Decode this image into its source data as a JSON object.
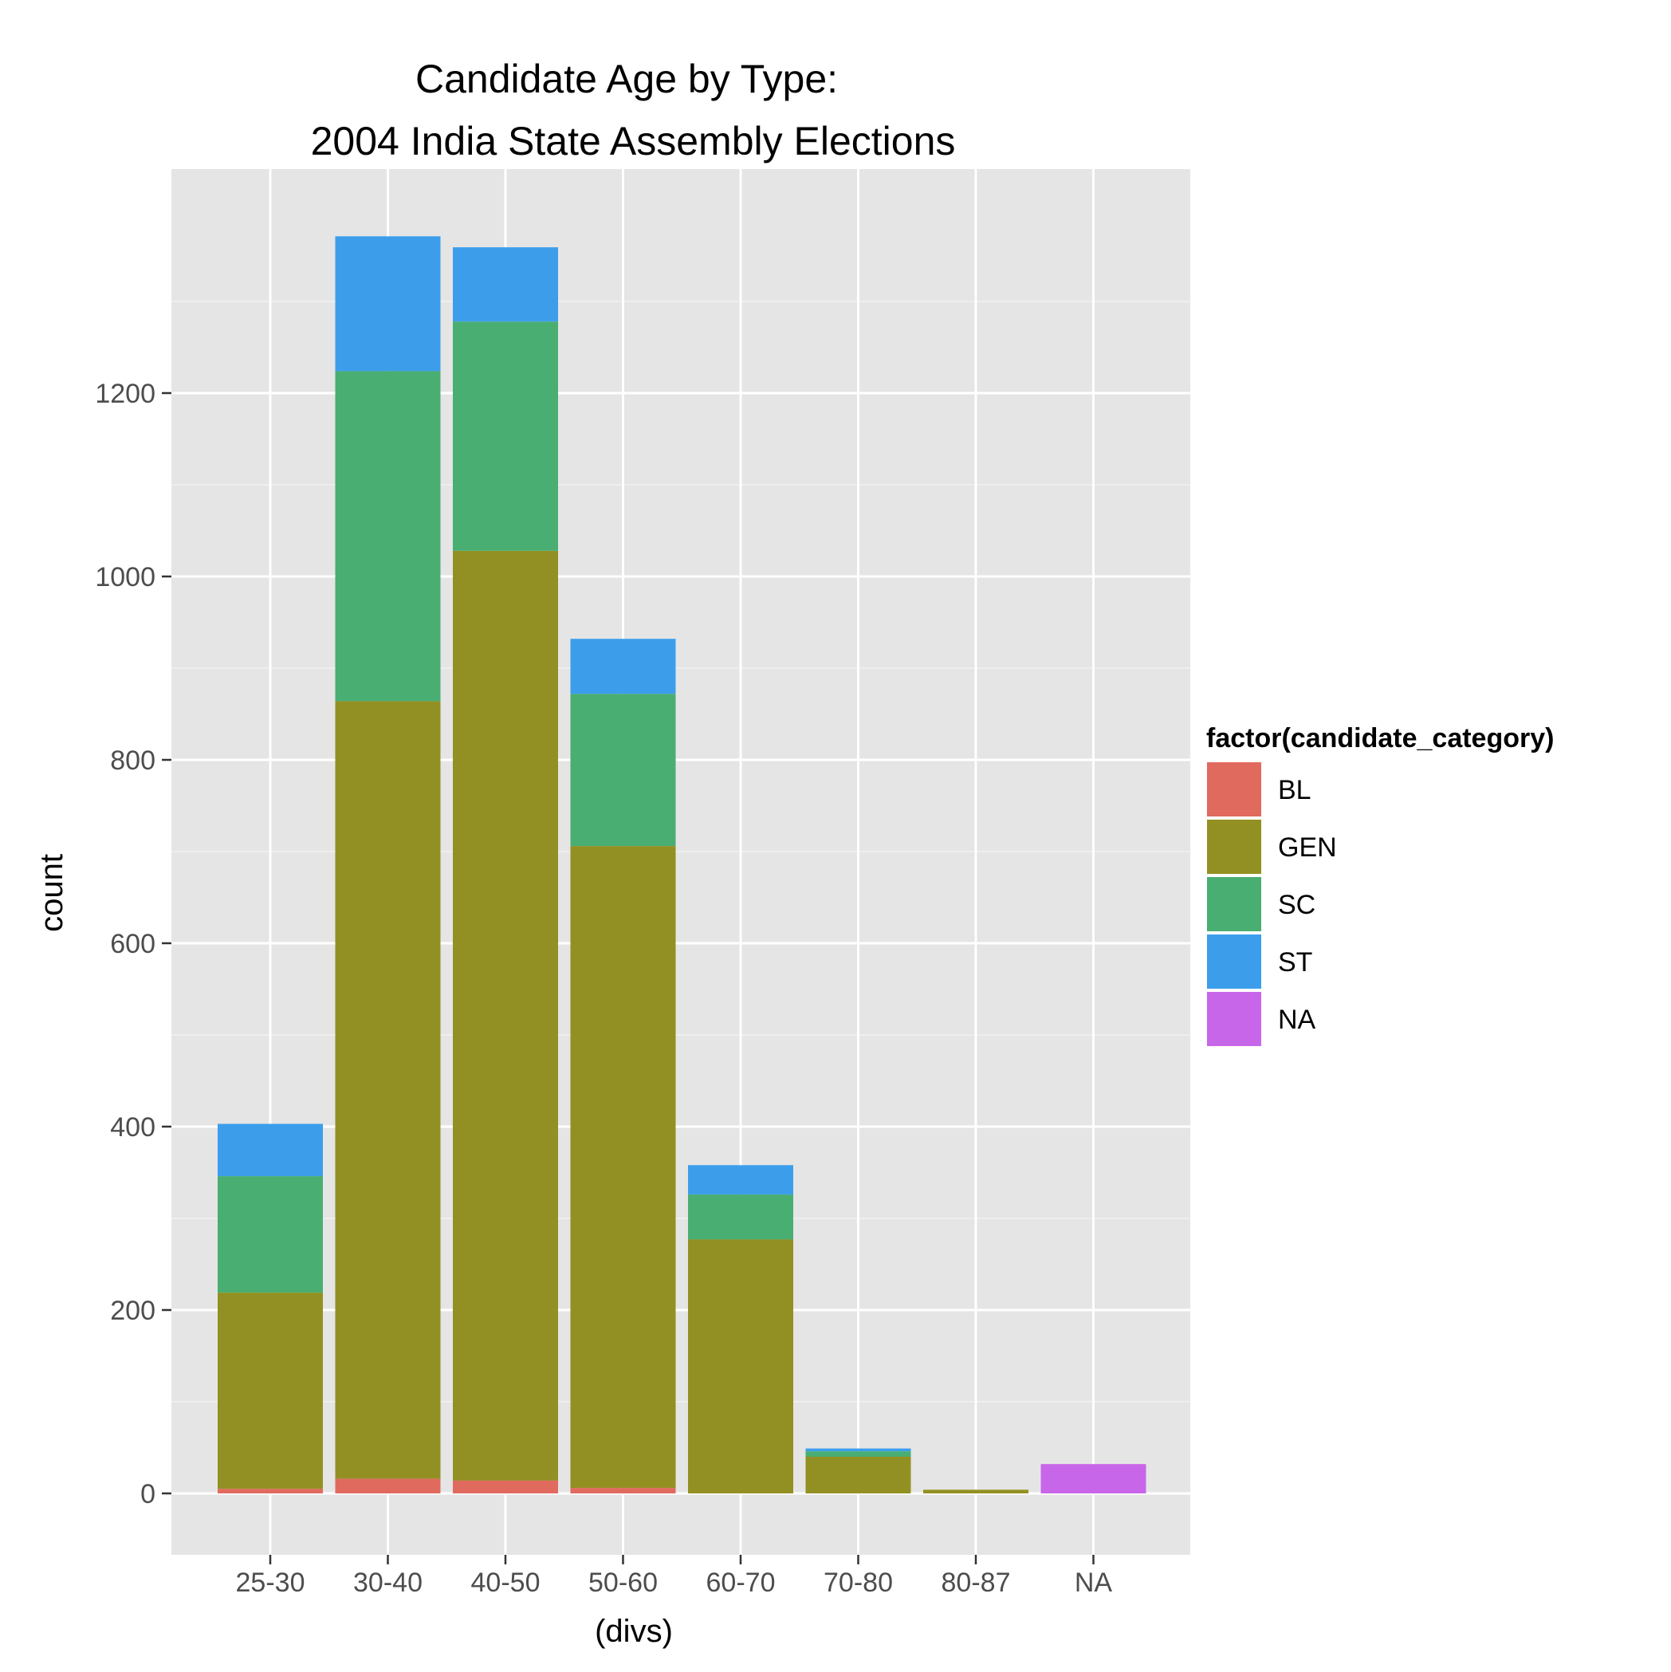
{
  "chart_data": {
    "type": "bar",
    "stacked": true,
    "title": [
      "Candidate Age by Type:",
      "2004 India State Assembly Elections"
    ],
    "xlabel": "(divs)",
    "ylabel": "count",
    "categories": [
      "25-30",
      "30-40",
      "40-50",
      "50-60",
      "60-70",
      "70-80",
      "80-87",
      "NA"
    ],
    "yticks": [
      0,
      200,
      400,
      600,
      800,
      1000,
      1200
    ],
    "ylim": [
      -65,
      1445
    ],
    "grid": true,
    "legend": {
      "title": "factor(candidate_category)",
      "placement": "right"
    },
    "series": [
      {
        "name": "BL",
        "color": "#E16A5F",
        "values": [
          5,
          16,
          14,
          6,
          0,
          0,
          0,
          0
        ]
      },
      {
        "name": "GEN",
        "color": "#939023",
        "values": [
          214,
          848,
          1014,
          700,
          277,
          40,
          4,
          0
        ]
      },
      {
        "name": "SC",
        "color": "#49AE72",
        "values": [
          127,
          360,
          250,
          166,
          49,
          6,
          0,
          0
        ]
      },
      {
        "name": "ST",
        "color": "#3C9EEB",
        "values": [
          57,
          147,
          81,
          60,
          32,
          3,
          0,
          0
        ]
      },
      {
        "name": "NA",
        "color": "#C866E9",
        "values": [
          0,
          0,
          0,
          0,
          0,
          0,
          0,
          32
        ]
      }
    ]
  }
}
